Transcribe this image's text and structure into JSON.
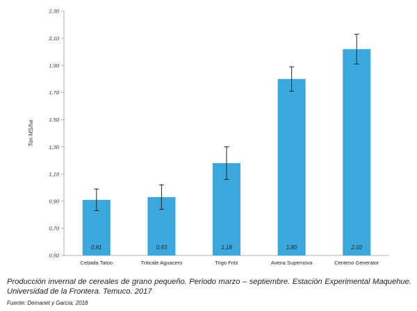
{
  "chart_data": {
    "type": "bar",
    "categories": [
      "Cebada Tatoo",
      "Triticale Aguacero",
      "Trigo Fritz",
      "Avena Supernova",
      "Centeno Generator"
    ],
    "values": [
      0.91,
      0.93,
      1.18,
      1.8,
      2.02
    ],
    "value_labels": [
      "0,91",
      "0,93",
      "1,18",
      "1,80",
      "2,02"
    ],
    "error_bars": [
      [
        0.83,
        0.99
      ],
      [
        0.84,
        1.02
      ],
      [
        1.06,
        1.3
      ],
      [
        1.71,
        1.89
      ],
      [
        1.91,
        2.13
      ]
    ],
    "ylabel": "Ton MS/ha",
    "ylim": [
      0.5,
      2.3
    ],
    "yticks": [
      0.5,
      0.7,
      0.9,
      1.1,
      1.3,
      1.5,
      1.7,
      1.9,
      2.1,
      2.3
    ],
    "ytick_labels": [
      "0,50",
      "0,70",
      "0,90",
      "1,10",
      "1,30",
      "1,50",
      "1,70",
      "1,90",
      "2,10",
      "2,30"
    ],
    "bar_color": "#3aa8dc",
    "grid": false
  },
  "caption": "Producción invernal de cereales de grano pequeño. Periodo marzo – septiembre. Estación Experimental Maquehue. Universidad de la Frontera. Temuco. 2017",
  "source": "Fuente: Demanet y García, 2018"
}
